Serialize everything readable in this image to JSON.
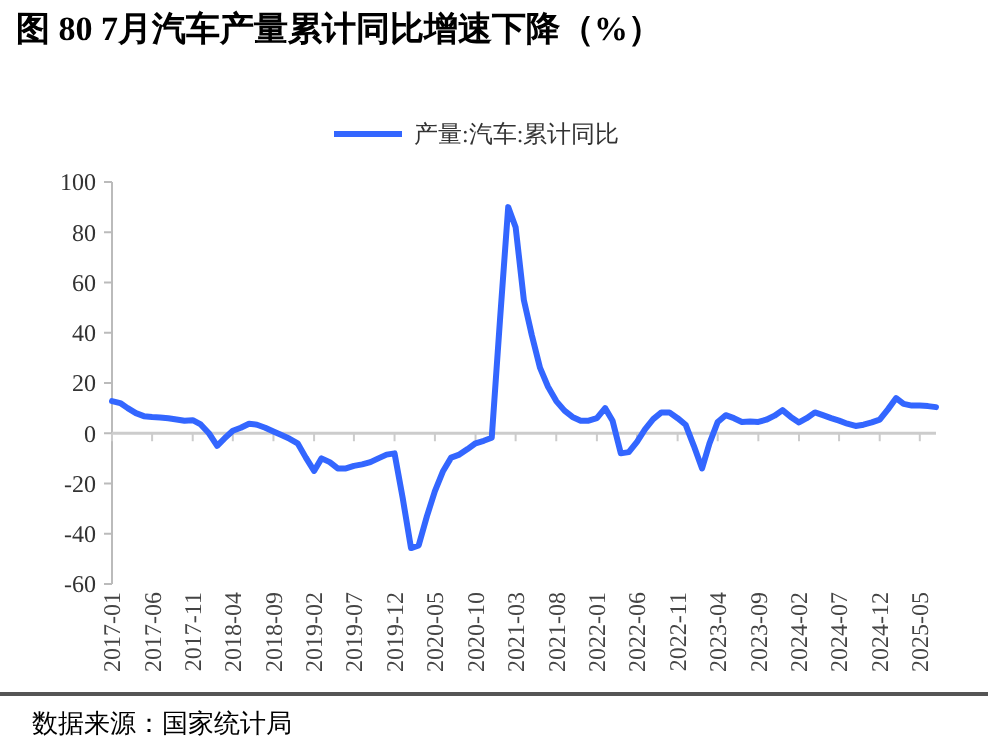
{
  "chart_data": {
    "type": "line",
    "title": "图 80 7月汽车产量累计同比增速下降（%）",
    "annotations": [
      "数据来源：国家统计局"
    ],
    "x": [
      "2017-01",
      "2017-02",
      "2017-03",
      "2017-04",
      "2017-05",
      "2017-06",
      "2017-07",
      "2017-08",
      "2017-09",
      "2017-10",
      "2017-11",
      "2017-12",
      "2018-01",
      "2018-02",
      "2018-03",
      "2018-04",
      "2018-05",
      "2018-06",
      "2018-07",
      "2018-08",
      "2018-09",
      "2018-10",
      "2018-11",
      "2018-12",
      "2019-01",
      "2019-02",
      "2019-03",
      "2019-04",
      "2019-05",
      "2019-06",
      "2019-07",
      "2019-08",
      "2019-09",
      "2019-10",
      "2019-11",
      "2019-12",
      "2020-01",
      "2020-02",
      "2020-03",
      "2020-04",
      "2020-05",
      "2020-06",
      "2020-07",
      "2020-08",
      "2020-09",
      "2020-10",
      "2020-11",
      "2020-12",
      "2021-01",
      "2021-02",
      "2021-03",
      "2021-04",
      "2021-05",
      "2021-06",
      "2021-07",
      "2021-08",
      "2021-09",
      "2021-10",
      "2021-11",
      "2021-12",
      "2022-01",
      "2022-02",
      "2022-03",
      "2022-04",
      "2022-05",
      "2022-06",
      "2022-07",
      "2022-08",
      "2022-09",
      "2022-10",
      "2022-11",
      "2022-12",
      "2023-01",
      "2023-02",
      "2023-03",
      "2023-04",
      "2023-05",
      "2023-06",
      "2023-07",
      "2023-08",
      "2023-09",
      "2023-10",
      "2023-11",
      "2023-12",
      "2024-01",
      "2024-02",
      "2024-03",
      "2024-04",
      "2024-05",
      "2024-06",
      "2024-07",
      "2024-08",
      "2024-09",
      "2024-10",
      "2024-11",
      "2024-12",
      "2025-01",
      "2025-02",
      "2025-03",
      "2025-04",
      "2025-05",
      "2025-06",
      "2025-07"
    ],
    "series": [
      {
        "name": "产量:汽车:累计同比",
        "color": "#3366ff",
        "values": [
          12.8,
          12,
          10,
          8,
          6.8,
          6.5,
          6.3,
          6,
          5.5,
          5,
          5.2,
          3.5,
          0,
          -5,
          -2,
          1,
          2.2,
          3.8,
          3.4,
          2.2,
          0.7,
          -0.7,
          -2.2,
          -4,
          -9.7,
          -15,
          -10,
          -11.5,
          -14,
          -14,
          -13,
          -12.4,
          -11.5,
          -10,
          -8.5,
          -8,
          -26,
          -45.7,
          -44.6,
          -33,
          -23,
          -15,
          -9.7,
          -8.5,
          -6.3,
          -4,
          -3,
          -1.8,
          45,
          90,
          82,
          53,
          39,
          26,
          18.5,
          12.8,
          9,
          6.5,
          5,
          5,
          6,
          10,
          5,
          -8,
          -7.5,
          -3.4,
          1.5,
          5.6,
          8.3,
          8.3,
          6,
          3.4,
          -5,
          -14,
          -4,
          4.5,
          7.2,
          6,
          4.5,
          4.7,
          4.5,
          5.4,
          7,
          9.2,
          6.5,
          4.3,
          6,
          8.3,
          7.2,
          6,
          5,
          3.8,
          2.9,
          3.4,
          4.3,
          5.4,
          9.5,
          14,
          11.7,
          11,
          11,
          10.8,
          10.4
        ]
      }
    ],
    "xlim": [
      "2017-01",
      "2025-07"
    ],
    "xticks": [
      "2017-01",
      "2017-06",
      "2017-11",
      "2018-04",
      "2018-09",
      "2019-02",
      "2019-07",
      "2019-12",
      "2020-05",
      "2020-10",
      "2021-03",
      "2021-08",
      "2022-01",
      "2022-06",
      "2022-11",
      "2023-04",
      "2023-09",
      "2024-02",
      "2024-07",
      "2024-12",
      "2025-05"
    ],
    "ylim": [
      -60,
      100
    ],
    "yticks": [
      -60,
      -40,
      -20,
      0,
      20,
      40,
      60,
      80,
      100
    ],
    "ref_lines": [
      {
        "axis": "y",
        "value": 0,
        "color": "#cccccc",
        "line_style": "solid"
      }
    ],
    "legend": "top",
    "line_style": "solid",
    "marker": "none",
    "grid": false
  }
}
